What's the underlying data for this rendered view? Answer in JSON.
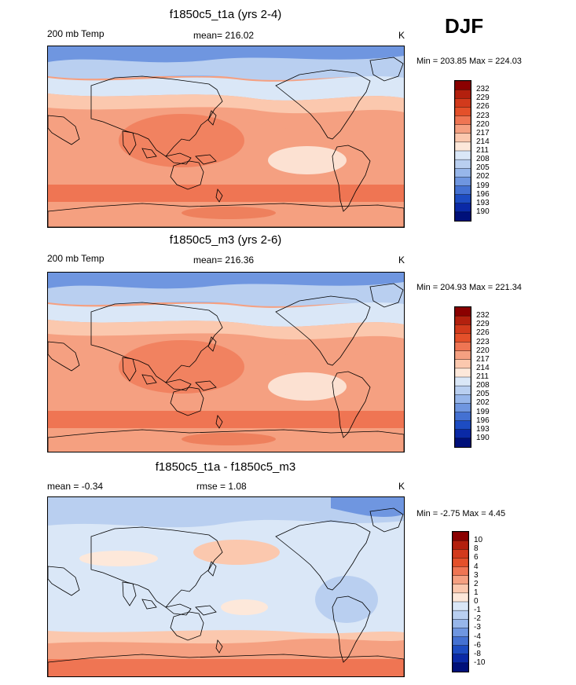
{
  "season": "DJF",
  "panels": [
    {
      "title": "f1850c5_t1a (yrs 2-4)",
      "left_label": "200 mb Temp",
      "center_label": "mean= 216.02",
      "units": "K",
      "minmax": "Min = 203.85 Max = 224.03",
      "colorbar": [
        "232",
        "229",
        "226",
        "223",
        "220",
        "217",
        "214",
        "211",
        "208",
        "205",
        "202",
        "199",
        "196",
        "193",
        "190"
      ],
      "colors": [
        "#8b0000",
        "#b3200e",
        "#d23a1c",
        "#e4502a",
        "#ef7553",
        "#f5a081",
        "#fbc8ae",
        "#fde8da",
        "#dae7f7",
        "#b9cff0",
        "#97b6ea",
        "#6f96e0",
        "#4471d2",
        "#1d4cc2",
        "#0a29a6",
        "#00107a"
      ],
      "scheme": "abs"
    },
    {
      "title": "f1850c5_m3 (yrs 2-6)",
      "left_label": "200 mb Temp",
      "center_label": "mean= 216.36",
      "units": "K",
      "minmax": "Min = 204.93 Max = 221.34",
      "colorbar": [
        "232",
        "229",
        "226",
        "223",
        "220",
        "217",
        "214",
        "211",
        "208",
        "205",
        "202",
        "199",
        "196",
        "193",
        "190"
      ],
      "colors": [
        "#8b0000",
        "#b3200e",
        "#d23a1c",
        "#e4502a",
        "#ef7553",
        "#f5a081",
        "#fbc8ae",
        "#fde8da",
        "#dae7f7",
        "#b9cff0",
        "#97b6ea",
        "#6f96e0",
        "#4471d2",
        "#1d4cc2",
        "#0a29a6",
        "#00107a"
      ],
      "scheme": "abs"
    },
    {
      "title": "f1850c5_t1a - f1850c5_m3",
      "left_label": "mean =  -0.34",
      "center_label": "rmse =   1.08",
      "units": "K",
      "minmax": "Min =  -2.75 Max =   4.45",
      "colorbar": [
        "10",
        "8",
        "6",
        "4",
        "3",
        "2",
        "1",
        "0",
        "-1",
        "-2",
        "-3",
        "-4",
        "-6",
        "-8",
        "-10"
      ],
      "colors": [
        "#8b0000",
        "#b3200e",
        "#d23a1c",
        "#e4502a",
        "#ef7553",
        "#f5a081",
        "#fbc8ae",
        "#fde8da",
        "#dae7f7",
        "#b9cff0",
        "#97b6ea",
        "#6f96e0",
        "#4471d2",
        "#1d4cc2",
        "#0a29a6",
        "#00107a"
      ],
      "scheme": "diff"
    }
  ],
  "chart_data": [
    {
      "type": "heatmap",
      "title": "f1850c5_t1a (yrs 2-4)",
      "variable": "200 mb Temp",
      "units": "K",
      "mean": 216.02,
      "min": 203.85,
      "max": 224.03,
      "levels": [
        190,
        193,
        196,
        199,
        202,
        205,
        208,
        211,
        214,
        217,
        220,
        223,
        226,
        229,
        232
      ]
    },
    {
      "type": "heatmap",
      "title": "f1850c5_m3 (yrs 2-6)",
      "variable": "200 mb Temp",
      "units": "K",
      "mean": 216.36,
      "min": 204.93,
      "max": 221.34,
      "levels": [
        190,
        193,
        196,
        199,
        202,
        205,
        208,
        211,
        214,
        217,
        220,
        223,
        226,
        229,
        232
      ]
    },
    {
      "type": "heatmap",
      "title": "f1850c5_t1a - f1850c5_m3",
      "units": "K",
      "mean": -0.34,
      "rmse": 1.08,
      "min": -2.75,
      "max": 4.45,
      "levels": [
        -10,
        -8,
        -6,
        -4,
        -3,
        -2,
        -1,
        0,
        1,
        2,
        3,
        4,
        6,
        8,
        10
      ]
    }
  ]
}
